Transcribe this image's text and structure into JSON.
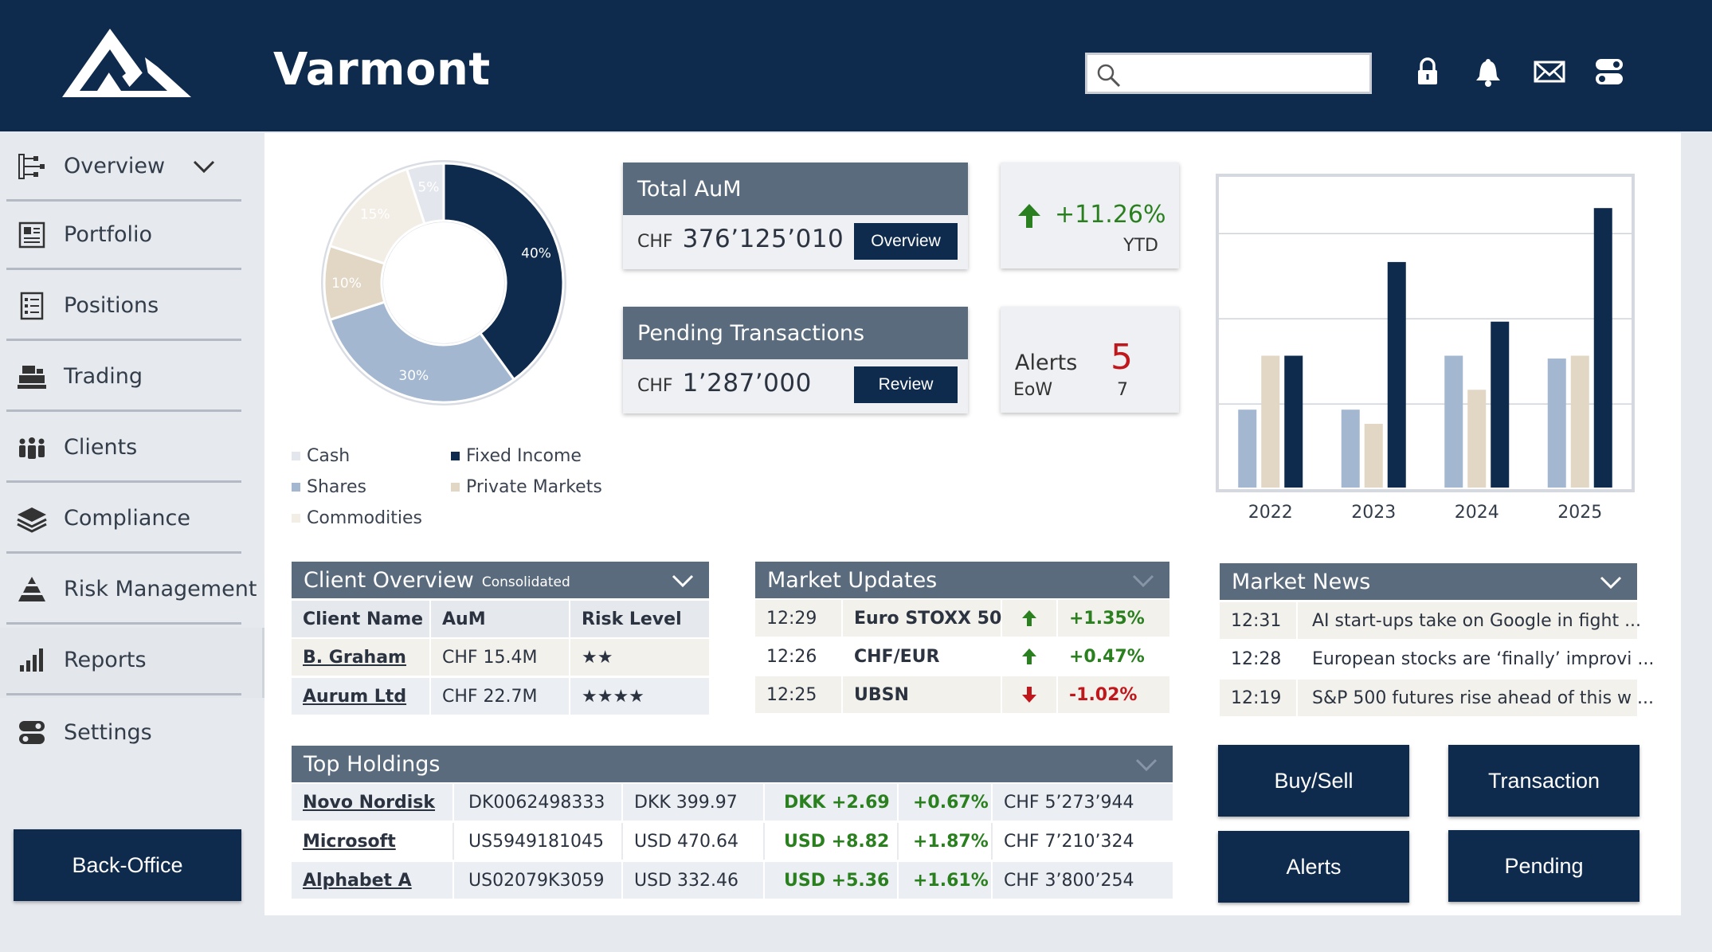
{
  "header": {
    "title": "Varmont",
    "search": {
      "placeholder": "",
      "value": ""
    },
    "icons": [
      "lock-icon",
      "bell-icon",
      "mail-icon",
      "toggle-icon"
    ]
  },
  "sidebar": {
    "items": [
      {
        "label": "Overview",
        "icon": "sitemap-icon"
      },
      {
        "label": "Portfolio",
        "icon": "newspaper-icon"
      },
      {
        "label": "Positions",
        "icon": "checklist-icon"
      },
      {
        "label": "Trading",
        "icon": "register-icon"
      },
      {
        "label": "Clients",
        "icon": "people-icon"
      },
      {
        "label": "Compliance",
        "icon": "layers-icon"
      },
      {
        "label": "Risk Management",
        "icon": "pyramid-icon"
      },
      {
        "label": "Reports",
        "icon": "bar-chart-icon"
      },
      {
        "label": "Settings",
        "icon": "settings-toggle-icon"
      }
    ],
    "back_office": "Back-Office"
  },
  "allocation": {
    "legend": [
      "Cash",
      "Fixed Income",
      "Shares",
      "Private Markets",
      "Commodities"
    ],
    "colors": {
      "Cash": "#e3e6ec",
      "Fixed Income": "#0e2a4d",
      "Shares": "#a3b7d0",
      "Private Markets": "#e2d6c4",
      "Commodities": "#f2eee6"
    }
  },
  "chart_data": [
    {
      "type": "pie",
      "variant": "donut",
      "slices": [
        {
          "name": "Fixed Income",
          "value": 40,
          "label": "40%"
        },
        {
          "name": "Shares",
          "value": 30,
          "label": "30%"
        },
        {
          "name": "Private Markets",
          "value": 10,
          "label": "10%"
        },
        {
          "name": "Commodities",
          "value": 15,
          "label": "15%"
        },
        {
          "name": "Cash",
          "value": 5,
          "label": "5%"
        }
      ]
    },
    {
      "type": "bar",
      "categories": [
        "2022",
        "2023",
        "2024",
        "2025"
      ],
      "series": [
        {
          "color": "#a3b7d0",
          "values": [
            28,
            28,
            47,
            46
          ]
        },
        {
          "color": "#e2d6c4",
          "values": [
            47,
            23,
            35,
            47
          ]
        },
        {
          "color": "#0e2a4d",
          "values": [
            47,
            80,
            59,
            99
          ]
        }
      ],
      "ylim": [
        0,
        110
      ],
      "grid": true,
      "legend": "none"
    }
  ],
  "total_aum": {
    "title": "Total AuM",
    "currency": "CHF",
    "value": "376’125’010",
    "button": "Overview"
  },
  "pending": {
    "title": "Pending Transactions",
    "currency": "CHF",
    "value": "1’287’000",
    "button": "Review"
  },
  "ytd": {
    "value": "+11.26%",
    "label": "YTD"
  },
  "alerts": {
    "label": "Alerts",
    "count": "5",
    "sub_label": "EoW",
    "sub_count": "7"
  },
  "client_overview": {
    "title": "Client Overview",
    "subtitle": "Consolidated",
    "headers": [
      "Client Name",
      "AuM",
      "Risk Level"
    ],
    "rows": [
      {
        "name": "B. Graham",
        "aum": "CHF 15.4M",
        "risk": "★★"
      },
      {
        "name": "Aurum Ltd",
        "aum": "CHF 22.7M",
        "risk": "★★★★"
      }
    ]
  },
  "market_updates": {
    "title": "Market Updates",
    "rows": [
      {
        "time": "12:29",
        "name": "Euro STOXX 50",
        "dir": "up",
        "change": "+1.35%"
      },
      {
        "time": "12:26",
        "name": "CHF/EUR",
        "dir": "up",
        "change": "+0.47%"
      },
      {
        "time": "12:25",
        "name": "UBSN",
        "dir": "down",
        "change": "-1.02%"
      }
    ]
  },
  "market_news": {
    "title": "Market News",
    "rows": [
      {
        "time": "12:31",
        "headline": "AI start-ups take on Google in fight ..."
      },
      {
        "time": "12:28",
        "headline": "European stocks are ‘finally’ improvi ..."
      },
      {
        "time": "12:19",
        "headline": "S&P 500 futures rise ahead of this w ..."
      }
    ]
  },
  "top_holdings": {
    "title": "Top Holdings",
    "rows": [
      {
        "name": "Novo Nordisk",
        "isin": "DK0062498333",
        "price": "DKK 399.97",
        "abs": "DKK +2.69",
        "pct": "+0.67%",
        "value": "CHF 5’273’944"
      },
      {
        "name": "Microsoft",
        "isin": "US5949181045",
        "price": "USD 470.64",
        "abs": "USD +8.82",
        "pct": "+1.87%",
        "value": "CHF 7’210’324"
      },
      {
        "name": "Alphabet A",
        "isin": "US02079K3059",
        "price": "USD 332.46",
        "abs": "USD +5.36",
        "pct": "+1.61%",
        "value": "CHF 3’800’254"
      }
    ]
  },
  "actions": {
    "buy_sell": "Buy/Sell",
    "transaction": "Transaction",
    "alerts": "Alerts",
    "pending": "Pending"
  }
}
